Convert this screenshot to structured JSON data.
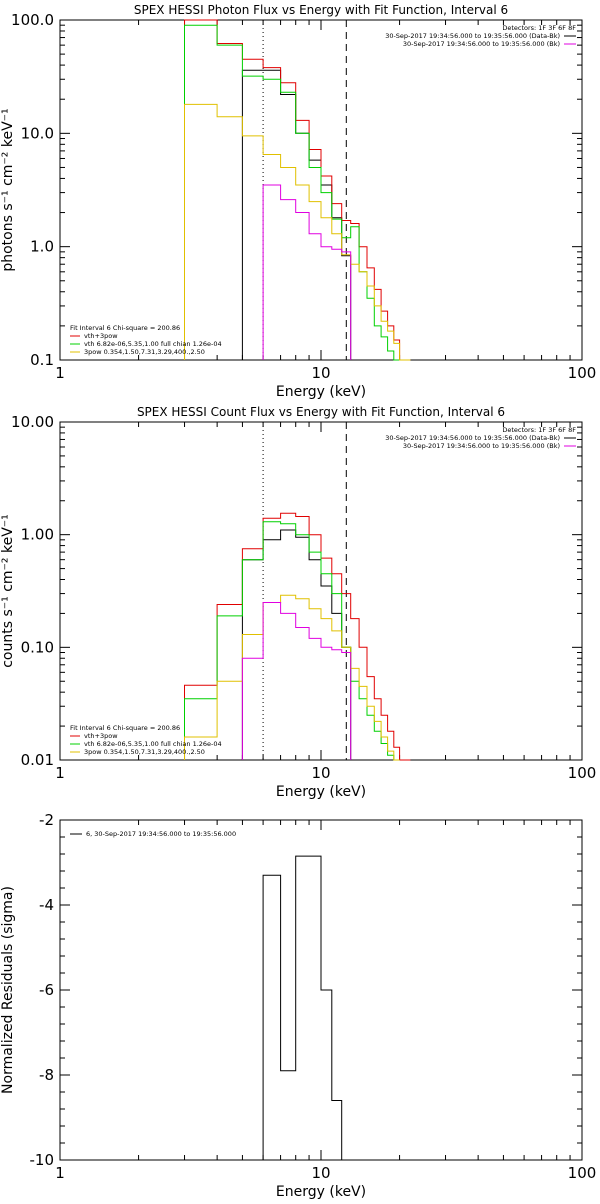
{
  "colors": {
    "data": "#000000",
    "total": "#e00000",
    "thermal": "#00d000",
    "powerlaw": "#e0c000",
    "background": "#e000e0",
    "axis": "#000000"
  },
  "chart_data": [
    {
      "type": "line",
      "title": "SPEX HESSI Photon Flux vs Energy with Fit Function, Interval 6",
      "xlabel": "Energy (keV)",
      "ylabel": "photons s⁻¹ cm⁻² keV⁻¹",
      "xscale": "log",
      "yscale": "log",
      "xlim": [
        1,
        100
      ],
      "ylim": [
        0.1,
        100
      ],
      "x_ticks": [
        "1",
        "10",
        "100"
      ],
      "y_ticks": [
        "0.1",
        "1.0",
        "10.0",
        "100.0"
      ],
      "energy_edges": [
        3,
        4,
        5,
        6,
        7,
        8,
        9,
        10,
        11,
        12,
        13,
        14,
        15,
        16,
        17,
        18,
        19,
        20,
        22,
        24
      ],
      "vertical_lines": [
        6,
        12.5
      ],
      "info_header": "Detectors: 1F 3F 6F 8F",
      "info_lines": [
        "30-Sep-2017 19:34:56.000 to 19:35:56.000 (Data-Bk)",
        "30-Sep-2017 19:34:56.000 to 19:35:56.000 (Bk)"
      ],
      "legend_title": "Fit Interval  6   Chi-square = 200.86",
      "legend": [
        "vth+3pow",
        "vth 6.82e-06,5.35,1.00  full chian 1.26e-04",
        "3pow 0.354,1.50,7.31,3.29,400.,2.50"
      ],
      "series": [
        {
          "name": "Data-Bk",
          "color_key": "data",
          "values": [
            null,
            null,
            36,
            36,
            22,
            10,
            5.8,
            3.5,
            1.8,
            0.83,
            null,
            null,
            null,
            null,
            null,
            null,
            null,
            null,
            null
          ]
        },
        {
          "name": "vth+3pow",
          "color_key": "total",
          "values": [
            100,
            62,
            45,
            38,
            28,
            13,
            7.2,
            4.2,
            2.4,
            1.7,
            1.6,
            1.0,
            0.65,
            0.42,
            0.27,
            0.2,
            0.15,
            0.1,
            null
          ]
        },
        {
          "name": "vth 6.82e-06,5.35,1.00  full chian 1.26e-04",
          "color_key": "thermal",
          "values": [
            90,
            60,
            32,
            30,
            23,
            10,
            5.0,
            3.0,
            1.75,
            1.2,
            1.5,
            0.6,
            0.35,
            0.2,
            0.16,
            0.12,
            0.1,
            null,
            null
          ]
        },
        {
          "name": "3pow 0.354,1.50,7.31,3.29,400.,2.50",
          "color_key": "powerlaw",
          "values": [
            18,
            14,
            9.5,
            6.5,
            5.0,
            3.5,
            2.5,
            1.8,
            1.3,
            0.85,
            0.7,
            0.6,
            0.45,
            0.3,
            0.22,
            0.18,
            0.14,
            0.1,
            null
          ]
        },
        {
          "name": "Bk",
          "color_key": "background",
          "values": [
            null,
            null,
            null,
            3.5,
            2.6,
            2.0,
            1.3,
            1.0,
            0.95,
            0.9,
            null,
            null,
            null,
            null,
            null,
            null,
            null,
            null,
            null
          ]
        }
      ]
    },
    {
      "type": "line",
      "title": "SPEX HESSI Count Flux vs Energy with Fit Function, Interval 6",
      "xlabel": "Energy (keV)",
      "ylabel": "counts s⁻¹ cm⁻² keV⁻¹",
      "xscale": "log",
      "yscale": "log",
      "xlim": [
        1,
        100
      ],
      "ylim": [
        0.01,
        10
      ],
      "x_ticks": [
        "1",
        "10",
        "100"
      ],
      "y_ticks": [
        "0.01",
        "0.10",
        "1.00",
        "10.00"
      ],
      "energy_edges": [
        3,
        4,
        5,
        6,
        7,
        8,
        9,
        10,
        11,
        12,
        13,
        14,
        15,
        16,
        17,
        18,
        19,
        20,
        22,
        24
      ],
      "vertical_lines": [
        6,
        12.5
      ],
      "info_header": "Detectors: 1F 3F 6F 8F",
      "info_lines": [
        "30-Sep-2017 19:34:56.000 to 19:35:56.000 (Data-Bk)",
        "30-Sep-2017 19:34:56.000 to 19:35:56.000 (Bk)"
      ],
      "legend_title": "Fit Interval  6   Chi-square = 200.86",
      "legend": [
        "vth+3pow",
        "vth 6.82e-06,5.35,1.00  full chian 1.26e-04",
        "3pow 0.354,1.50,7.31,3.29,400.,2.50"
      ],
      "series": [
        {
          "name": "Data-Bk",
          "color_key": "data",
          "values": [
            null,
            null,
            0.6,
            0.9,
            1.1,
            0.95,
            0.6,
            0.35,
            0.2,
            0.1,
            null,
            null,
            null,
            null,
            null,
            null,
            null,
            null,
            null
          ]
        },
        {
          "name": "vth+3pow",
          "color_key": "total",
          "values": [
            0.046,
            0.24,
            0.75,
            1.4,
            1.55,
            1.45,
            1.0,
            0.62,
            0.45,
            0.3,
            0.18,
            0.1,
            0.055,
            0.035,
            0.025,
            0.018,
            0.013,
            0.01,
            null
          ]
        },
        {
          "name": "vth 6.82e-06,5.35,1.00  full chian 1.26e-04",
          "color_key": "thermal",
          "values": [
            0.035,
            0.19,
            0.6,
            1.3,
            1.25,
            1.0,
            0.7,
            0.45,
            0.3,
            0.1,
            0.05,
            0.035,
            0.025,
            0.018,
            0.014,
            0.011,
            0.01,
            null,
            null
          ]
        },
        {
          "name": "3pow 0.354,1.50,7.31,3.29,400.,2.50",
          "color_key": "powerlaw",
          "values": [
            0.016,
            0.05,
            0.13,
            0.25,
            0.29,
            0.27,
            0.22,
            0.18,
            0.14,
            0.1,
            0.065,
            0.045,
            0.03,
            0.022,
            0.016,
            0.012,
            0.01,
            null,
            null
          ]
        },
        {
          "name": "Bk",
          "color_key": "background",
          "values": [
            null,
            null,
            0.08,
            0.25,
            0.2,
            0.15,
            0.12,
            0.1,
            0.095,
            0.09,
            null,
            null,
            null,
            null,
            null,
            null,
            null,
            null,
            null
          ]
        }
      ]
    },
    {
      "type": "line",
      "title": "",
      "xlabel": "Energy (keV)",
      "ylabel": "Normalized Residuals (sigma)",
      "xscale": "log",
      "yscale": "linear",
      "xlim": [
        1,
        100
      ],
      "ylim": [
        -10,
        -2
      ],
      "x_ticks": [
        "1",
        "10",
        "100"
      ],
      "y_ticks": [
        "-10",
        "-8",
        "-6",
        "-4",
        "-2"
      ],
      "energy_edges": [
        6,
        7,
        8,
        9,
        10,
        11,
        12
      ],
      "legend_title": "",
      "legend": [
        "6, 30-Sep-2017 19:34:56.000 to 19:35:56.000"
      ],
      "series": [
        {
          "name": "6, 30-Sep-2017 19:34:56.000 to 19:35:56.000",
          "color_key": "data",
          "values": [
            -3.3,
            -7.9,
            -2.85,
            -2.85,
            -6.0,
            -8.6
          ]
        }
      ]
    }
  ]
}
